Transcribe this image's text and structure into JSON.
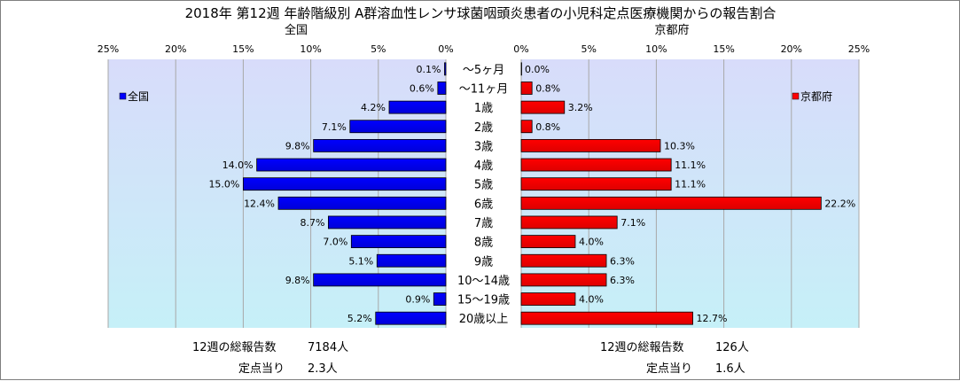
{
  "title": "2018年 第12週 年齢階級別 A群溶血性レンサ球菌咽頭炎患者の小児科定点医療機関からの報告割合",
  "colors": {
    "left_bar": "#0000ff",
    "right_bar": "#ff0000",
    "plot_bg_top": "#d8dcfa",
    "plot_bg_bottom": "#c6f0f8"
  },
  "chart_data": {
    "type": "bar",
    "orientation": "horizontal-mirrored",
    "categories": [
      "～5ヶ月",
      "～11ヶ月",
      "1歳",
      "2歳",
      "3歳",
      "4歳",
      "5歳",
      "6歳",
      "7歳",
      "8歳",
      "9歳",
      "10～14歳",
      "15～19歳",
      "20歳以上"
    ],
    "grid": true,
    "panels": [
      {
        "subtitle": "全国",
        "legend": "全国",
        "legend_position": "left",
        "direction": "reversed",
        "xlim": [
          0,
          25
        ],
        "ticks": [
          "25%",
          "20%",
          "15%",
          "10%",
          "5%",
          "0%"
        ],
        "labels": [
          "0.1%",
          "0.6%",
          "4.2%",
          "7.1%",
          "9.8%",
          "14.0%",
          "15.0%",
          "12.4%",
          "8.7%",
          "7.0%",
          "5.1%",
          "9.8%",
          "0.9%",
          "5.2%"
        ],
        "values": [
          0.1,
          0.6,
          4.2,
          7.1,
          9.8,
          14.0,
          15.0,
          12.4,
          8.7,
          7.0,
          5.1,
          9.8,
          0.9,
          5.2
        ]
      },
      {
        "subtitle": "京都府",
        "legend": "京都府",
        "legend_position": "right",
        "direction": "normal",
        "xlim": [
          0,
          25
        ],
        "ticks": [
          "0%",
          "5%",
          "10%",
          "15%",
          "20%",
          "25%"
        ],
        "labels": [
          "0.0%",
          "0.8%",
          "3.2%",
          "0.8%",
          "10.3%",
          "11.1%",
          "11.1%",
          "22.2%",
          "7.1%",
          "4.0%",
          "6.3%",
          "6.3%",
          "4.0%",
          "12.7%"
        ],
        "values": [
          0.0,
          0.8,
          3.2,
          0.8,
          10.3,
          11.1,
          11.1,
          22.2,
          7.1,
          4.0,
          6.3,
          6.3,
          4.0,
          12.7
        ]
      }
    ]
  },
  "footer": {
    "left": {
      "total_label": "12週の総報告数",
      "total_value": "7184人",
      "per_label": "定点当り",
      "per_value": "2.3人"
    },
    "right": {
      "total_label": "12週の総報告数",
      "total_value": "126人",
      "per_label": "定点当り",
      "per_value": "1.6人"
    }
  }
}
